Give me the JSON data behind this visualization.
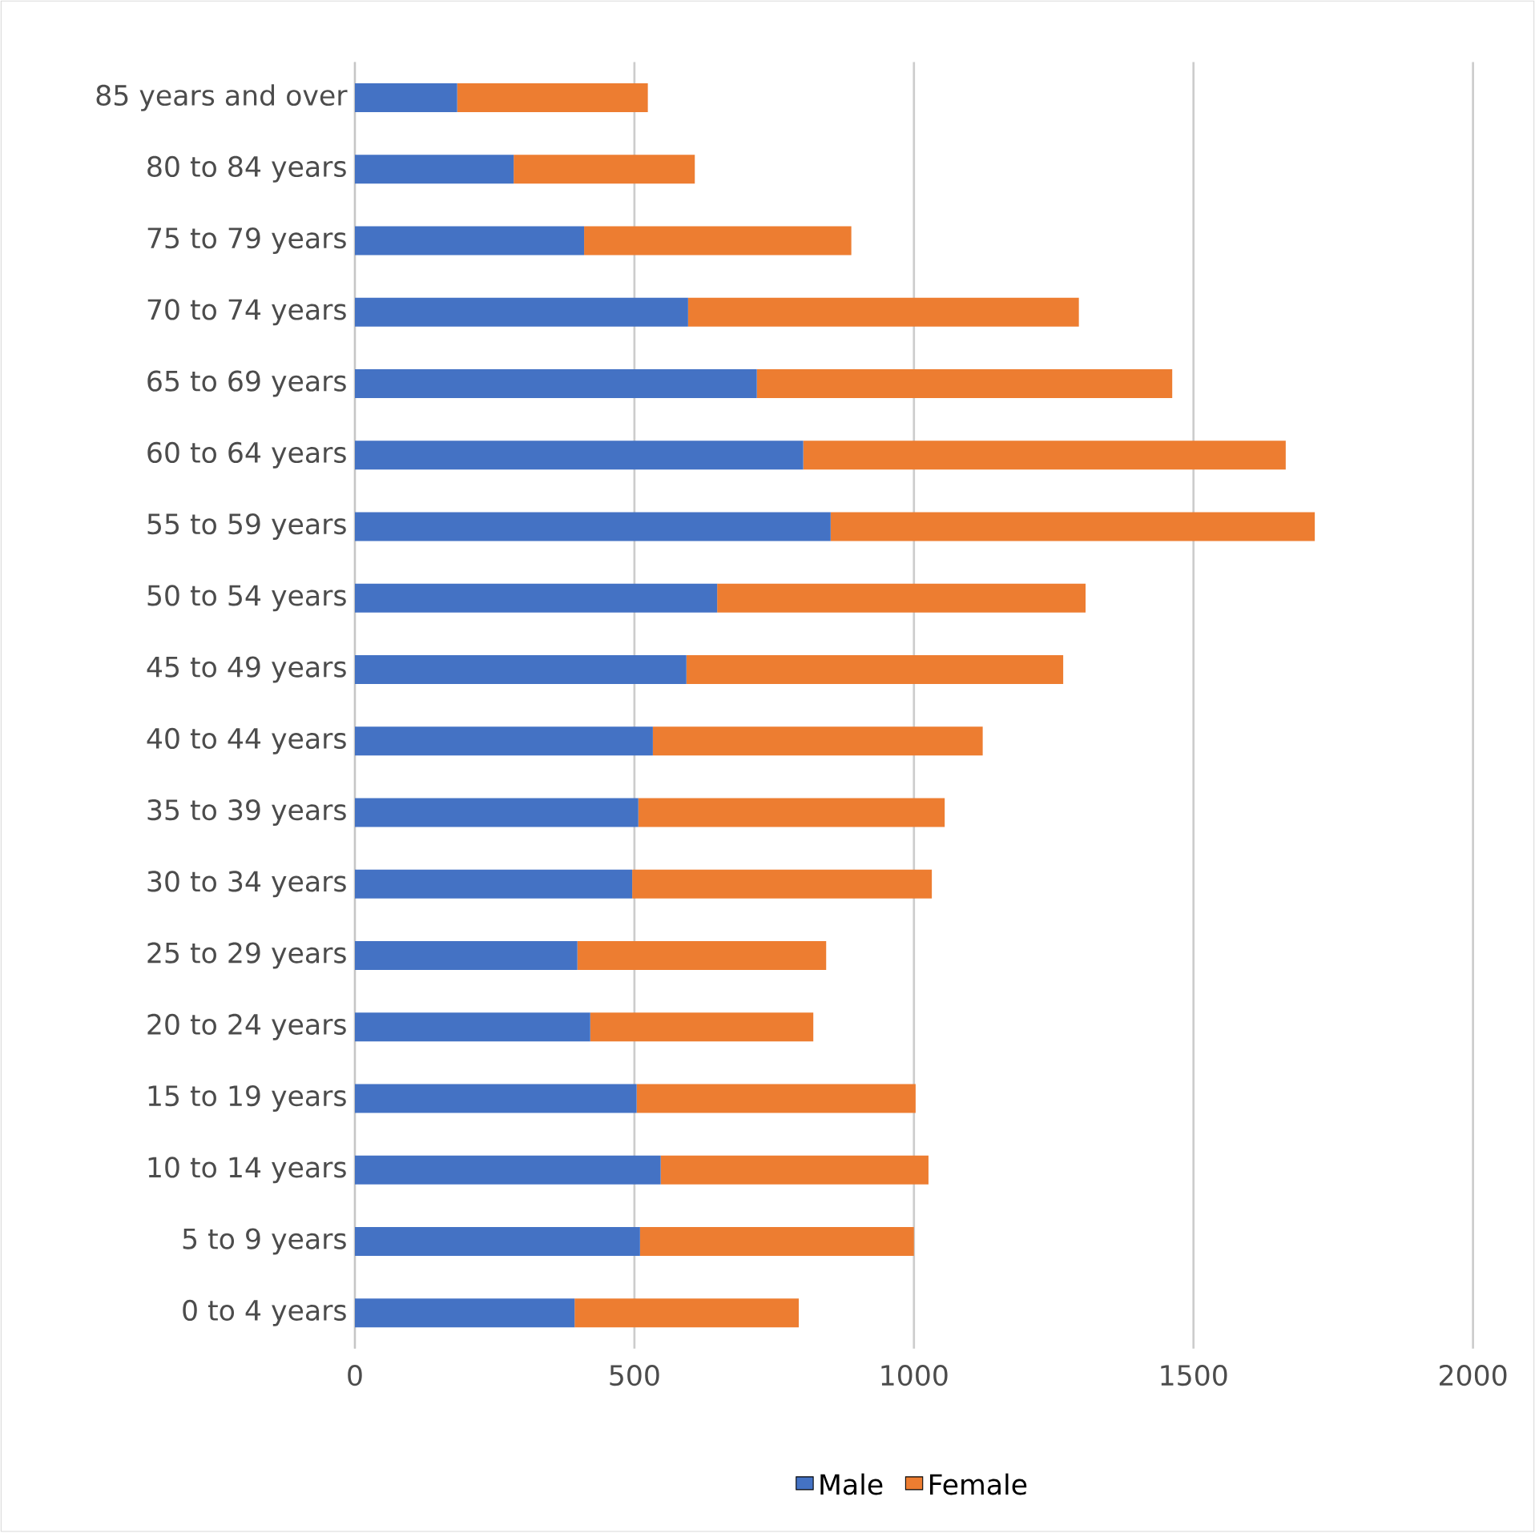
{
  "chart_data": {
    "type": "bar",
    "orientation": "horizontal",
    "stacked": true,
    "categories": [
      "85 years and over",
      "80 to 84 years",
      "75 to 79 years",
      "70 to 74 years",
      "65 to 69 years",
      "60 to 64 years",
      "55 to 59 years",
      "50 to 54 years",
      "45 to 49 years",
      "40 to 44 years",
      "35 to 39 years",
      "30 to 34 years",
      "25 to 29 years",
      "20 to 24 years",
      "15 to 19 years",
      "10 to 14 years",
      "5 to 9 years",
      "0 to 4 years"
    ],
    "series": [
      {
        "name": "Male",
        "color": "#4472c4",
        "values": [
          183,
          284,
          410,
          596,
          719,
          802,
          851,
          648,
          593,
          533,
          507,
          496,
          398,
          421,
          504,
          547,
          510,
          393
        ]
      },
      {
        "name": "Female",
        "color": "#ed7d31",
        "values": [
          341,
          324,
          478,
          699,
          743,
          863,
          866,
          659,
          674,
          590,
          548,
          536,
          445,
          399,
          499,
          479,
          490,
          401
        ]
      }
    ],
    "xlim": [
      0,
      2000
    ],
    "xticks": [
      0,
      500,
      1000,
      1500,
      2000
    ],
    "grid": "x",
    "legend": "bottom"
  }
}
